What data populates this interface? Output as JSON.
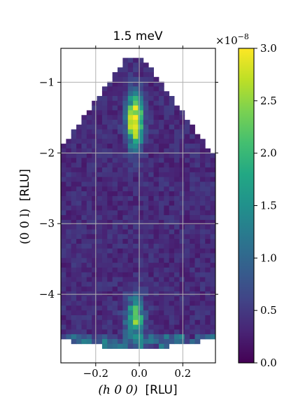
{
  "chart_data": {
    "type": "heatmap",
    "title": "1.5 meV",
    "xlabel_main": "(h 0 0)",
    "xlabel_unit": "[RLU]",
    "ylabel_main": "(0 0 l)",
    "ylabel_unit": "[RLU]",
    "xlim": [
      -0.36,
      0.35
    ],
    "ylim": [
      -4.97,
      -0.52
    ],
    "xticks": [
      -0.2,
      0.0,
      0.2
    ],
    "xtick_labels": [
      "−0.2",
      "0.0",
      "0.2"
    ],
    "yticks": [
      -1,
      -2,
      -3,
      -4
    ],
    "ytick_labels": [
      "−1",
      "−2",
      "−3",
      "−4"
    ],
    "grid": true,
    "colorbar": {
      "min": 0.0,
      "max": 3.0,
      "ticks": [
        0.0,
        0.5,
        1.0,
        1.5,
        2.0,
        2.5,
        3.0
      ],
      "tick_labels": [
        "0.0",
        "0.5",
        "1.0",
        "1.5",
        "2.0",
        "2.5",
        "3.0"
      ],
      "multiplier": "×10",
      "multiplier_exponent": "−8",
      "colormap": "viridis"
    },
    "features": [
      {
        "h": -0.02,
        "l_center": -1.55,
        "l_width": 0.35,
        "h_width": 0.035,
        "value": 3.0
      },
      {
        "h": -0.02,
        "l_center": -4.35,
        "l_width": 0.3,
        "h_width": 0.04,
        "value": 2.0
      }
    ],
    "background_level": 0.35
  }
}
